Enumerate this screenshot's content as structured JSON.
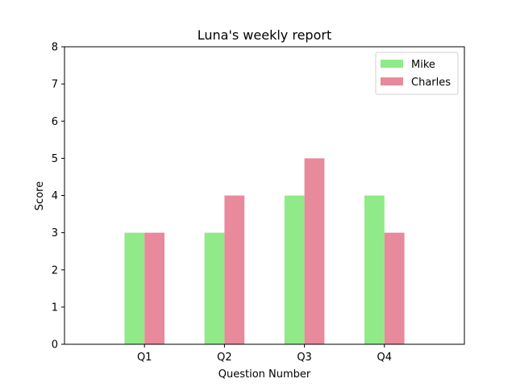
{
  "chart_data": {
    "type": "bar",
    "title": "Luna's weekly report",
    "xlabel": "Question Number",
    "ylabel": "Score",
    "categories": [
      "Q1",
      "Q2",
      "Q3",
      "Q4"
    ],
    "series": [
      {
        "name": "Mike",
        "values": [
          3,
          3,
          4,
          4
        ],
        "color": "#90ea87"
      },
      {
        "name": "Charles",
        "values": [
          3,
          4,
          5,
          3
        ],
        "color": "#e8899c"
      }
    ],
    "ylim": [
      0,
      8
    ],
    "yticks": [
      0,
      1,
      2,
      3,
      4,
      5,
      6,
      7,
      8
    ],
    "grid": false,
    "legend": "top-right"
  }
}
